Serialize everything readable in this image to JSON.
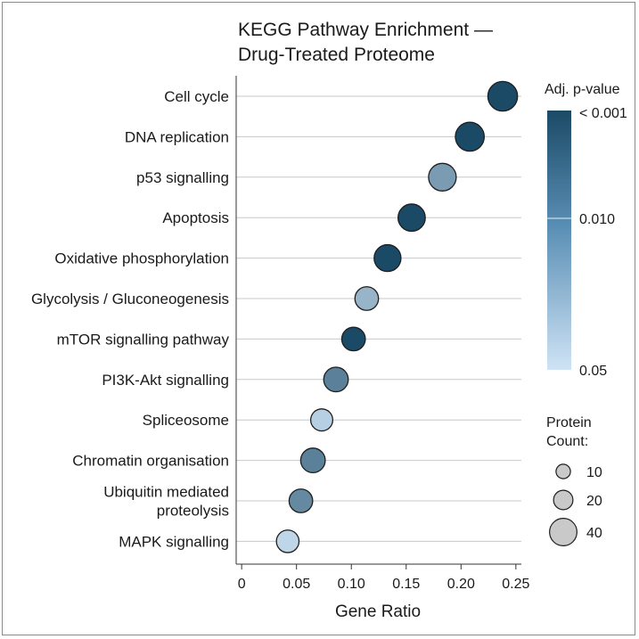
{
  "chart_data": {
    "type": "scatter",
    "title_lines": [
      "KEGG Pathway Enrichment —",
      "Drug-Treated Proteome"
    ],
    "xlabel": "Gene Ratio",
    "xlim": [
      -0.005,
      0.255
    ],
    "xticks": [
      "0",
      "0.05",
      "0.10",
      "0.15",
      "0.20",
      "0.25"
    ],
    "xtick_values": [
      0,
      0.05,
      0.1,
      0.15,
      0.2,
      0.25
    ],
    "grid": "horizontal",
    "categories": [
      [
        "Cell cycle"
      ],
      [
        "DNA replication"
      ],
      [
        "p53 signalling"
      ],
      [
        "Apoptosis"
      ],
      [
        "Oxidative phosphorylation"
      ],
      [
        "Glycolysis / Gluconeogenesis"
      ],
      [
        "mTOR signalling pathway"
      ],
      [
        "PI3K-Akt signalling"
      ],
      [
        "Spliceosome"
      ],
      [
        "Chromatin organisation"
      ],
      [
        "Ubiquitin mediated",
        "proteolysis"
      ],
      [
        "MAPK signalling"
      ]
    ],
    "points": [
      {
        "gene_ratio": 0.238,
        "p_adj": 0.0008,
        "count": 38
      },
      {
        "gene_ratio": 0.208,
        "p_adj": 0.0009,
        "count": 36
      },
      {
        "gene_ratio": 0.183,
        "p_adj": 0.008,
        "count": 33
      },
      {
        "gene_ratio": 0.155,
        "p_adj": 0.0008,
        "count": 32
      },
      {
        "gene_ratio": 0.133,
        "p_adj": 0.0008,
        "count": 31
      },
      {
        "gene_ratio": 0.114,
        "p_adj": 0.015,
        "count": 24
      },
      {
        "gene_ratio": 0.102,
        "p_adj": 0.0008,
        "count": 24
      },
      {
        "gene_ratio": 0.086,
        "p_adj": 0.004,
        "count": 26
      },
      {
        "gene_ratio": 0.073,
        "p_adj": 0.03,
        "count": 21
      },
      {
        "gene_ratio": 0.065,
        "p_adj": 0.004,
        "count": 26
      },
      {
        "gene_ratio": 0.054,
        "p_adj": 0.005,
        "count": 24
      },
      {
        "gene_ratio": 0.042,
        "p_adj": 0.035,
        "count": 22
      }
    ],
    "color_legend": {
      "title": "Adj. p-value",
      "scale": "log",
      "labels": [
        "< 0.001",
        "0.010",
        "0.05"
      ],
      "values": [
        0.001,
        0.01,
        0.05
      ],
      "color_low_p": "#1b4a66",
      "color_high_p": "#cfe3f5"
    },
    "size_legend": {
      "title_lines": [
        "Protein",
        "Count:"
      ],
      "labels": [
        "10",
        "20",
        "40"
      ],
      "values": [
        10,
        20,
        40
      ]
    }
  }
}
